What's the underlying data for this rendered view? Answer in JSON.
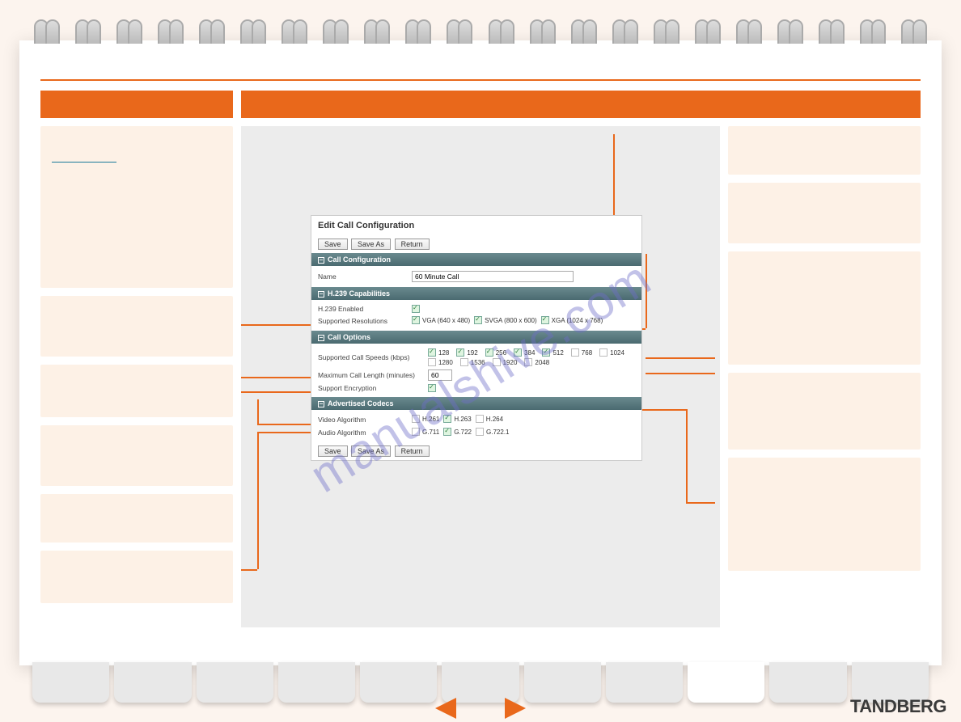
{
  "watermark": "manualshive.com",
  "brand": "TANDBERG",
  "form": {
    "title": "Edit Call Configuration",
    "buttons": {
      "save": "Save",
      "saveAs": "Save As",
      "return": "Return"
    },
    "sections": {
      "callConfig": {
        "header": "Call Configuration",
        "name_label": "Name",
        "name_value": "60 Minute Call"
      },
      "h239": {
        "header": "H.239 Capabilities",
        "enabled_label": "H.239 Enabled",
        "res_label": "Supported Resolutions",
        "res_opts": [
          {
            "label": "VGA (640 x 480)",
            "checked": true
          },
          {
            "label": "SVGA (800 x 600)",
            "checked": true
          },
          {
            "label": "XGA (1024 x 768)",
            "checked": true
          }
        ]
      },
      "callOpts": {
        "header": "Call Options",
        "speeds_label": "Supported Call Speeds (kbps)",
        "speeds": [
          {
            "label": "128",
            "checked": true
          },
          {
            "label": "192",
            "checked": true
          },
          {
            "label": "256",
            "checked": true
          },
          {
            "label": "384",
            "checked": true
          },
          {
            "label": "512",
            "checked": true
          },
          {
            "label": "768",
            "checked": false
          },
          {
            "label": "1024",
            "checked": false
          },
          {
            "label": "1280",
            "checked": false
          },
          {
            "label": "1536",
            "checked": false
          },
          {
            "label": "1920",
            "checked": false
          },
          {
            "label": "2048",
            "checked": false
          }
        ],
        "maxlen_label": "Maximum Call Length (minutes)",
        "maxlen_value": "60",
        "encrypt_label": "Support Encryption"
      },
      "codecs": {
        "header": "Advertised Codecs",
        "video_label": "Video Algorithm",
        "video_opts": [
          {
            "label": "H.261",
            "checked": false
          },
          {
            "label": "H.263",
            "checked": true
          },
          {
            "label": "H.264",
            "checked": false
          }
        ],
        "audio_label": "Audio Algorithm",
        "audio_opts": [
          {
            "label": "G.711",
            "checked": false
          },
          {
            "label": "G.722",
            "checked": true
          },
          {
            "label": "G.722.1",
            "checked": false
          }
        ]
      }
    }
  },
  "styling": {
    "accent": "#e9681b",
    "pane_bg": "#fdf1e6",
    "page_bg": "#fcf4ee",
    "section_hdr_bg": "#5a7a80",
    "watermark_color": "rgba(110,110,200,0.42)"
  },
  "layout": {
    "left_pane_heights": [
      200,
      75,
      65,
      75,
      60,
      65
    ],
    "right_pane_heights": [
      50,
      75,
      140,
      95,
      140
    ],
    "tab_count": 11,
    "active_tab_index": 8
  }
}
